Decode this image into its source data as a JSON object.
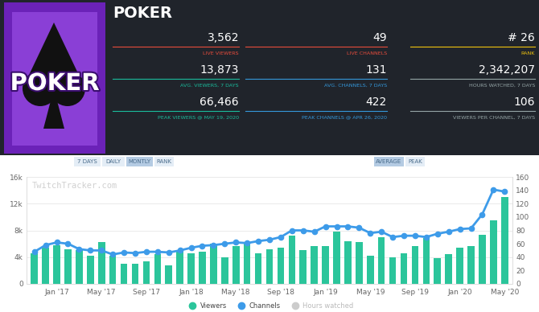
{
  "header": {
    "title": "POKER",
    "logo_text": "POKER"
  },
  "stats": [
    {
      "value": "3,562",
      "label": "LIVE VIEWERS",
      "color": "#e74c3c"
    },
    {
      "value": "49",
      "label": "LIVE CHANNELS",
      "color": "#e74c3c"
    },
    {
      "value": "# 26",
      "label": "RANK",
      "color": "#f1c40f"
    },
    {
      "value": "13,873",
      "label": "AVG. VIEWERS, 7 DAYS",
      "color": "#1abc9c"
    },
    {
      "value": "131",
      "label": "AVG. CHANNELS, 7 DAYS",
      "color": "#3498db"
    },
    {
      "value": "2,342,207",
      "label": "HOURS WATCHED, 7 DAYS",
      "color": "#95a5a6"
    },
    {
      "value": "66,466",
      "label": "PEAK VIEWERS @ MAY 19, 2020",
      "color": "#1abc9c"
    },
    {
      "value": "422",
      "label": "PEAK CHANNELS @ APR 26, 2020",
      "color": "#3498db"
    },
    {
      "value": "106",
      "label": "VIEWERS PER CHANNEL, 7 DAYS",
      "color": "#95a5a6"
    }
  ],
  "controls": {
    "left": [
      "7 DAYS",
      "DAILY",
      "MONTLY",
      "RANK"
    ],
    "left_active": "MONTLY",
    "right": [
      "AVERAGE",
      "PEAK"
    ],
    "right_active": "AVERAGE"
  },
  "watermark": "TwitchTracker.com",
  "chart_data": {
    "type": "bar",
    "categories": [
      null,
      null,
      "Jan '17",
      null,
      null,
      null,
      "May '17",
      null,
      null,
      null,
      "Sep '17",
      null,
      null,
      null,
      "Jan '18",
      null,
      null,
      null,
      "May '18",
      null,
      null,
      null,
      "Sep '18",
      null,
      null,
      null,
      "Jan '19",
      null,
      null,
      null,
      "May '19",
      null,
      null,
      null,
      "Sep '19",
      null,
      null,
      null,
      "Jan '20",
      null,
      null,
      null,
      "May '20"
    ],
    "series": [
      {
        "name": "Viewers",
        "type": "bar",
        "color": "#2bc59b",
        "values": [
          4600,
          5400,
          5800,
          5200,
          5000,
          4200,
          6300,
          4200,
          3000,
          3000,
          3400,
          4400,
          2800,
          4800,
          4600,
          4800,
          6000,
          4000,
          5600,
          6200,
          4600,
          5200,
          5400,
          7200,
          5000,
          5600,
          5600,
          7800,
          6400,
          6200,
          4200,
          7000,
          4000,
          4600,
          5600,
          6800,
          3900,
          4500,
          5400,
          5600,
          7300,
          9500,
          13000
        ]
      },
      {
        "name": "Channels",
        "type": "line",
        "color": "#3d9be9",
        "marker": "o",
        "axis": "y2",
        "values": [
          48,
          58,
          62,
          60,
          52,
          50,
          50,
          44,
          47,
          46,
          48,
          48,
          47,
          50,
          54,
          57,
          58,
          60,
          62,
          61,
          64,
          66,
          70,
          80,
          80,
          78,
          86,
          86,
          86,
          84,
          76,
          78,
          70,
          72,
          72,
          70,
          75,
          78,
          82,
          83,
          104,
          141,
          138
        ]
      },
      {
        "name": "Hours watched",
        "type": "line",
        "color": "#cccccc",
        "values": [
          null,
          null,
          null,
          null,
          null,
          null,
          null,
          null,
          null,
          null,
          null,
          null,
          null,
          null,
          null,
          null,
          null,
          null,
          null,
          null,
          null,
          null,
          null,
          null,
          null,
          null,
          null,
          null,
          null,
          null,
          null,
          null,
          null,
          null,
          null,
          null,
          null,
          null,
          null,
          null,
          null,
          null,
          null
        ]
      }
    ],
    "ylim": [
      0,
      16000
    ],
    "yticks": [
      0,
      {
        "value": 4000,
        "label": "4k"
      },
      {
        "value": 8000,
        "label": "8k"
      },
      {
        "value": 12000,
        "label": "12k"
      },
      {
        "value": 16000,
        "label": "16k"
      }
    ],
    "y2lim": [
      0,
      160
    ],
    "y2ticks": [
      0,
      20,
      40,
      60,
      80,
      100,
      120,
      140,
      160
    ],
    "grid": true,
    "legend": "lower center"
  }
}
